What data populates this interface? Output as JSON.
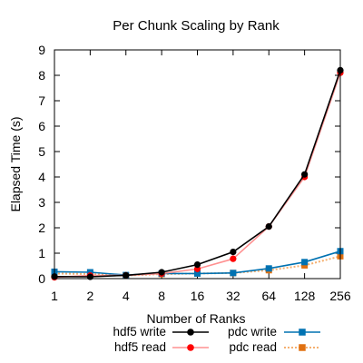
{
  "chart_data": {
    "type": "line",
    "title": "Per Chunk Scaling by Rank",
    "xlabel": "Number of Ranks",
    "ylabel": "Elapsed Time (s)",
    "x_scale": "log2",
    "categories": [
      "1",
      "2",
      "4",
      "8",
      "16",
      "32",
      "64",
      "128",
      "256"
    ],
    "x": [
      1,
      2,
      4,
      8,
      16,
      32,
      64,
      128,
      256
    ],
    "ylim": [
      0,
      9
    ],
    "yticks": [
      "0",
      "1",
      "2",
      "3",
      "4",
      "5",
      "6",
      "7",
      "8",
      "9"
    ],
    "grid": false,
    "legend_position": "bottom",
    "series": [
      {
        "name": "hdf5 write",
        "color": "#000000",
        "marker": "circle",
        "line": "solid",
        "values": [
          0.08,
          0.07,
          0.13,
          0.25,
          0.55,
          1.05,
          2.05,
          4.1,
          8.2
        ]
      },
      {
        "name": "hdf5 read",
        "color": "#ff0000",
        "line_color": "#ff9090",
        "marker": "circle",
        "line": "solid",
        "values": [
          0.05,
          0.12,
          0.13,
          0.2,
          0.38,
          0.78,
          2.05,
          4.0,
          8.1
        ]
      },
      {
        "name": "pdc write",
        "color": "#0072b2",
        "marker": "square",
        "line": "solid",
        "values": [
          0.27,
          0.25,
          0.14,
          0.2,
          0.2,
          0.22,
          0.4,
          0.65,
          1.08
        ]
      },
      {
        "name": "pdc read",
        "color": "#e07010",
        "line_color": "#f5b070",
        "marker": "square",
        "line": "dotted",
        "values": [
          0.2,
          0.18,
          0.12,
          0.18,
          0.2,
          0.22,
          0.33,
          0.52,
          0.88
        ]
      }
    ]
  }
}
